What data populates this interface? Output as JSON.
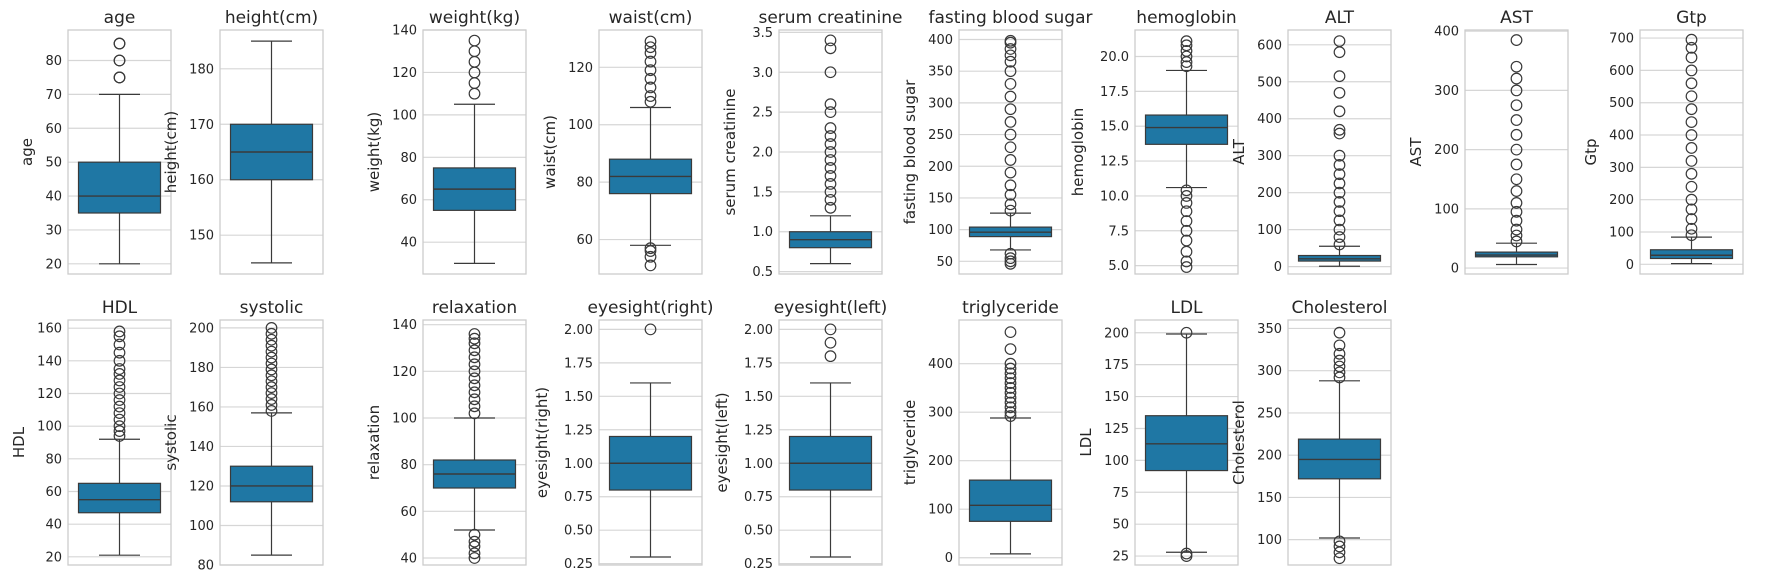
{
  "style": {
    "box_color": "#1f77a4",
    "box_edge": "#3a3a3a",
    "grid_color": "#d6d6d6",
    "spine_color": "#cccccc"
  },
  "chart_data": [
    {
      "type": "box",
      "title": "age",
      "ylabel": "age",
      "ylim": [
        17,
        89
      ],
      "yticks": [
        20,
        30,
        40,
        50,
        60,
        70,
        80
      ],
      "box": {
        "whislo": 20,
        "q1": 35,
        "med": 40,
        "q3": 50,
        "whishi": 70
      },
      "fliers": [
        75,
        75,
        80,
        80,
        85,
        85
      ]
    },
    {
      "type": "box",
      "title": "height(cm)",
      "ylabel": "height(cm)",
      "ylim": [
        143,
        187
      ],
      "yticks": [
        150,
        160,
        170,
        180
      ],
      "box": {
        "whislo": 145,
        "q1": 160,
        "med": 165,
        "q3": 170,
        "whishi": 185
      },
      "fliers": []
    },
    {
      "type": "box",
      "title": "weight(kg)",
      "ylabel": "weight(kg)",
      "ylim": [
        25,
        140
      ],
      "yticks": [
        40,
        60,
        80,
        100,
        120,
        140
      ],
      "box": {
        "whislo": 30,
        "q1": 55,
        "med": 65,
        "q3": 75,
        "whishi": 105
      },
      "fliers": [
        110,
        115,
        120,
        125,
        130,
        135
      ]
    },
    {
      "type": "box",
      "title": "waist(cm)",
      "ylabel": "waist(cm)",
      "ylim": [
        48,
        133
      ],
      "yticks": [
        60,
        80,
        100,
        120
      ],
      "box": {
        "whislo": 58,
        "q1": 76,
        "med": 82,
        "q3": 88,
        "whishi": 106
      },
      "fliers": [
        51,
        54,
        56,
        57,
        108,
        110,
        113,
        116,
        119,
        122,
        125,
        127,
        129
      ]
    },
    {
      "type": "box",
      "title": "serum creatinine",
      "ylabel": "serum creatinine",
      "ylim": [
        0.47,
        3.53
      ],
      "yticks": [
        0.5,
        1.0,
        1.5,
        2.0,
        2.5,
        3.0,
        3.5
      ],
      "box": {
        "whislo": 0.6,
        "q1": 0.8,
        "med": 0.9,
        "q3": 1.0,
        "whishi": 1.2
      },
      "fliers": [
        1.3,
        1.4,
        1.5,
        1.6,
        1.7,
        1.8,
        1.9,
        2.0,
        2.1,
        2.2,
        2.3,
        2.5,
        2.6,
        3.0,
        3.3,
        3.4
      ]
    },
    {
      "type": "box",
      "title": "fasting blood sugar",
      "ylabel": "fasting blood sugar",
      "ylim": [
        30,
        415
      ],
      "yticks": [
        50,
        100,
        150,
        200,
        250,
        300,
        350,
        400
      ],
      "box": {
        "whislo": 68,
        "q1": 89,
        "med": 96,
        "q3": 104,
        "whishi": 126
      },
      "fliers": [
        46,
        50,
        55,
        62,
        130,
        140,
        155,
        170,
        190,
        210,
        230,
        250,
        270,
        290,
        310,
        330,
        350,
        365,
        375,
        385,
        395,
        398
      ]
    },
    {
      "type": "box",
      "title": "hemoglobin",
      "ylabel": "hemoglobin",
      "ylim": [
        4.4,
        21.9
      ],
      "yticks": [
        5.0,
        7.5,
        10.0,
        12.5,
        15.0,
        17.5,
        20.0
      ],
      "box": {
        "whislo": 10.6,
        "q1": 13.7,
        "med": 14.9,
        "q3": 15.8,
        "whishi": 19.0
      },
      "fliers": [
        4.9,
        5.3,
        6.0,
        6.8,
        7.5,
        8.2,
        8.9,
        9.5,
        10.0,
        10.4,
        19.3,
        19.6,
        20.0,
        20.4,
        20.8,
        21.1
      ]
    },
    {
      "type": "box",
      "title": "ALT",
      "ylabel": "ALT",
      "ylim": [
        -20,
        640
      ],
      "yticks": [
        0,
        100,
        200,
        300,
        400,
        500,
        600
      ],
      "box": {
        "whislo": 1,
        "q1": 15,
        "med": 21,
        "q3": 30,
        "whishi": 55
      },
      "fliers": [
        60,
        80,
        100,
        125,
        150,
        175,
        200,
        225,
        250,
        275,
        300,
        360,
        370,
        420,
        470,
        515,
        580,
        610
      ]
    },
    {
      "type": "box",
      "title": "AST",
      "ylabel": "AST",
      "ylim": [
        -10,
        402
      ],
      "yticks": [
        0,
        100,
        200,
        300,
        400
      ],
      "box": {
        "whislo": 6,
        "q1": 19,
        "med": 22,
        "q3": 27,
        "whishi": 42
      },
      "fliers": [
        45,
        55,
        65,
        80,
        95,
        110,
        130,
        150,
        175,
        200,
        225,
        250,
        275,
        300,
        320,
        340,
        385
      ]
    },
    {
      "type": "box",
      "title": "Gtp",
      "ylabel": "Gtp",
      "ylim": [
        -30,
        725
      ],
      "yticks": [
        0,
        100,
        200,
        300,
        400,
        500,
        600,
        700
      ],
      "box": {
        "whislo": 2,
        "q1": 18,
        "med": 28,
        "q3": 45,
        "whishi": 84
      },
      "fliers": [
        90,
        110,
        140,
        170,
        200,
        240,
        280,
        320,
        360,
        400,
        440,
        480,
        520,
        560,
        600,
        640,
        670,
        695
      ]
    },
    {
      "type": "box",
      "title": "HDL",
      "ylabel": "HDL",
      "ylim": [
        15,
        165
      ],
      "yticks": [
        20,
        40,
        60,
        80,
        100,
        120,
        140,
        160
      ],
      "box": {
        "whislo": 21,
        "q1": 47,
        "med": 55,
        "q3": 65,
        "whishi": 92
      },
      "fliers": [
        94,
        97,
        100,
        104,
        108,
        112,
        116,
        120,
        124,
        128,
        132,
        135,
        140,
        145,
        150,
        155,
        158
      ]
    },
    {
      "type": "box",
      "title": "systolic",
      "ylabel": "systolic",
      "ylim": [
        80,
        204
      ],
      "yticks": [
        80,
        100,
        120,
        140,
        160,
        180,
        200
      ],
      "box": {
        "whislo": 85,
        "q1": 112,
        "med": 120,
        "q3": 130,
        "whishi": 157
      },
      "fliers": [
        158,
        161,
        164,
        167,
        170,
        173,
        176,
        179,
        182,
        185,
        188,
        191,
        194,
        197,
        200
      ]
    },
    {
      "type": "box",
      "title": "relaxation",
      "ylabel": "relaxation",
      "ylim": [
        37,
        142
      ],
      "yticks": [
        40,
        60,
        80,
        100,
        120,
        140
      ],
      "box": {
        "whislo": 52,
        "q1": 70,
        "med": 76,
        "q3": 82,
        "whishi": 100
      },
      "fliers": [
        40,
        42,
        45,
        47,
        50,
        102,
        105,
        108,
        111,
        114,
        117,
        120,
        123,
        126,
        129,
        132,
        134,
        136
      ]
    },
    {
      "type": "box",
      "title": "eyesight(right)",
      "ylabel": "eyesight(right)",
      "ylim": [
        0.24,
        2.07
      ],
      "yticks": [
        0.25,
        0.5,
        0.75,
        1.0,
        1.25,
        1.5,
        1.75,
        2.0
      ],
      "box": {
        "whislo": 0.3,
        "q1": 0.8,
        "med": 1.0,
        "q3": 1.2,
        "whishi": 1.6
      },
      "fliers": [
        2.0
      ]
    },
    {
      "type": "box",
      "title": "eyesight(left)",
      "ylabel": "eyesight(left)",
      "ylim": [
        0.24,
        2.07
      ],
      "yticks": [
        0.25,
        0.5,
        0.75,
        1.0,
        1.25,
        1.5,
        1.75,
        2.0
      ],
      "box": {
        "whislo": 0.3,
        "q1": 0.8,
        "med": 1.0,
        "q3": 1.2,
        "whishi": 1.6
      },
      "fliers": [
        1.8,
        1.9,
        2.0
      ]
    },
    {
      "type": "box",
      "title": "triglyceride",
      "ylabel": "triglyceride",
      "ylim": [
        -15,
        490
      ],
      "yticks": [
        0,
        100,
        200,
        300,
        400
      ],
      "box": {
        "whislo": 8,
        "q1": 75,
        "med": 108,
        "q3": 160,
        "whishi": 288
      },
      "fliers": [
        292,
        300,
        310,
        320,
        330,
        340,
        350,
        360,
        370,
        380,
        390,
        400,
        430,
        465
      ]
    },
    {
      "type": "box",
      "title": "LDL",
      "ylabel": "LDL",
      "ylim": [
        18,
        210
      ],
      "yticks": [
        25,
        50,
        75,
        100,
        125,
        150,
        175,
        200
      ],
      "box": {
        "whislo": 28,
        "q1": 92,
        "med": 113,
        "q3": 135,
        "whishi": 199
      },
      "fliers": [
        25,
        27,
        200
      ]
    },
    {
      "type": "box",
      "title": "Cholesterol",
      "ylabel": "Cholesterol",
      "ylim": [
        70,
        360
      ],
      "yticks": [
        100,
        150,
        200,
        250,
        300,
        350
      ],
      "box": {
        "whislo": 102,
        "q1": 172,
        "med": 195,
        "q3": 219,
        "whishi": 288
      },
      "fliers": [
        78,
        85,
        92,
        98,
        292,
        298,
        305,
        312,
        320,
        330,
        345
      ]
    }
  ]
}
